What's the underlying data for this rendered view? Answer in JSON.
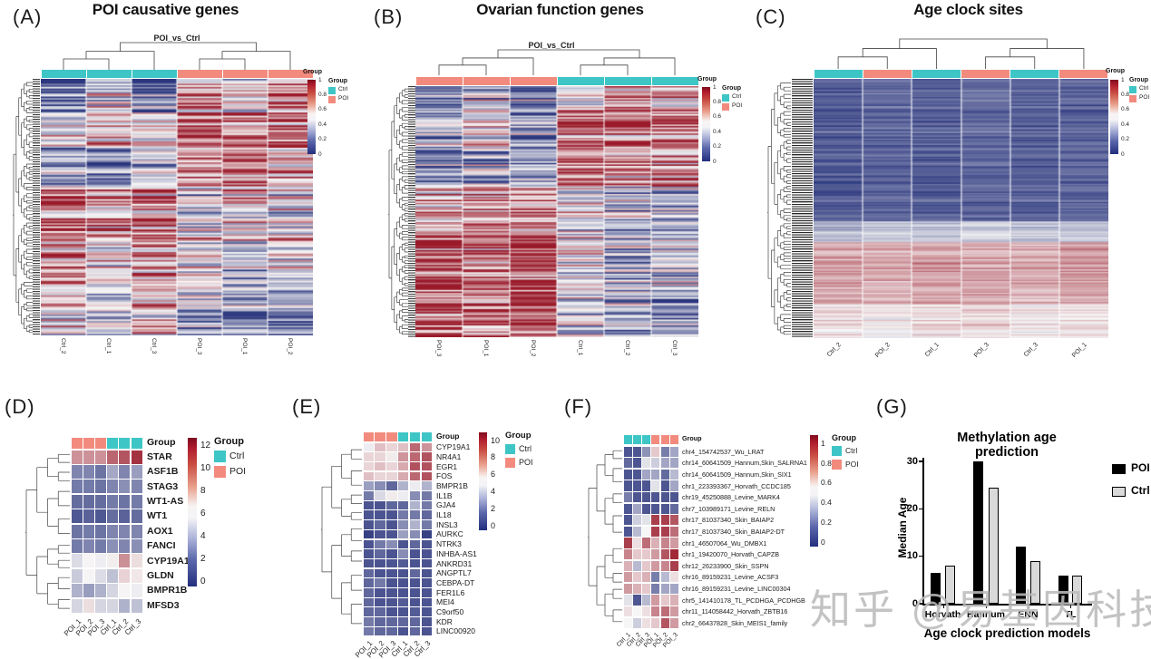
{
  "figure": {
    "watermark": "知乎 @易基因科技"
  },
  "colors": {
    "ctrl": "#3EC6C6",
    "poi": "#F28B7D",
    "heat_low": "#222E78",
    "heat_mid": "#F7F6F6",
    "heat_high": "#961122",
    "bar_poi": "#000000",
    "bar_ctrl": "#D9D9D9"
  },
  "chart_data": {
    "A": {
      "type": "heatmap",
      "panel_tag": "(A)",
      "title": "POI causative genes",
      "cluster_title": "POI_vs_Ctrl",
      "columns": [
        "Ctrl_2",
        "Ctrl_1",
        "Ctrl_3",
        "POI_3",
        "POI_1",
        "POI_2"
      ],
      "col_groups": [
        "Ctrl",
        "Ctrl",
        "Ctrl",
        "POI",
        "POI",
        "POI"
      ],
      "n_rows": 160,
      "seed": 7,
      "noise": 0.45,
      "value_ticks": [
        "1",
        "0.8",
        "0.6",
        "0.4",
        "0.2",
        "0"
      ],
      "colorbar_title": "Group",
      "legend_title": "Group",
      "legend_items": [
        "Ctrl",
        "POI"
      ],
      "blocks": [
        {
          "rows_frac": 0.13,
          "col_means": [
            0.15,
            0.5,
            0.2,
            0.72,
            0.5,
            0.78
          ]
        },
        {
          "rows_frac": 0.13,
          "col_means": [
            0.45,
            0.62,
            0.5,
            0.8,
            0.78,
            0.8
          ]
        },
        {
          "rows_frac": 0.16,
          "col_means": [
            0.35,
            0.3,
            0.45,
            0.75,
            0.8,
            0.7
          ]
        },
        {
          "rows_frac": 0.2,
          "col_means": [
            0.8,
            0.68,
            0.75,
            0.45,
            0.55,
            0.5
          ]
        },
        {
          "rows_frac": 0.13,
          "col_means": [
            0.75,
            0.55,
            0.72,
            0.6,
            0.45,
            0.55
          ]
        },
        {
          "rows_frac": 0.13,
          "col_means": [
            0.6,
            0.5,
            0.65,
            0.5,
            0.32,
            0.4
          ]
        },
        {
          "rows_frac": 0.12,
          "col_means": [
            0.55,
            0.5,
            0.6,
            0.3,
            0.28,
            0.22
          ]
        }
      ]
    },
    "B": {
      "type": "heatmap",
      "panel_tag": "(B)",
      "title": "Ovarian function genes",
      "cluster_title": "POI_vs_Ctrl",
      "columns": [
        "POI_3",
        "POI_1",
        "POI_2",
        "Ctrl_1",
        "Ctrl_2",
        "Ctrl_3"
      ],
      "col_groups": [
        "POI",
        "POI",
        "POI",
        "Ctrl",
        "Ctrl",
        "Ctrl"
      ],
      "n_rows": 170,
      "seed": 21,
      "noise": 0.45,
      "value_ticks": [
        "1",
        "0.8",
        "0.6",
        "0.4",
        "0.2",
        "0"
      ],
      "colorbar_title": "Group",
      "legend_title": "Group",
      "legend_items": [
        "Ctrl",
        "POI"
      ],
      "blocks": [
        {
          "rows_frac": 0.1,
          "col_means": [
            0.25,
            0.42,
            0.28,
            0.55,
            0.78,
            0.7
          ]
        },
        {
          "rows_frac": 0.15,
          "col_means": [
            0.38,
            0.55,
            0.32,
            0.8,
            0.82,
            0.78
          ]
        },
        {
          "rows_frac": 0.15,
          "col_means": [
            0.28,
            0.32,
            0.38,
            0.75,
            0.7,
            0.72
          ]
        },
        {
          "rows_frac": 0.15,
          "col_means": [
            0.7,
            0.78,
            0.72,
            0.52,
            0.38,
            0.35
          ]
        },
        {
          "rows_frac": 0.2,
          "col_means": [
            0.8,
            0.72,
            0.8,
            0.5,
            0.32,
            0.38
          ]
        },
        {
          "rows_frac": 0.25,
          "col_means": [
            0.85,
            0.78,
            0.82,
            0.42,
            0.32,
            0.28
          ]
        }
      ]
    },
    "C": {
      "type": "heatmap",
      "panel_tag": "(C)",
      "title": "Age clock sites",
      "columns": [
        "Ctrl_2",
        "POI_2",
        "Ctrl_1",
        "POI_3",
        "Ctrl_3",
        "POI_1"
      ],
      "col_groups": [
        "Ctrl",
        "POI",
        "Ctrl",
        "POI",
        "Ctrl",
        "POI"
      ],
      "n_rows": 200,
      "seed": 33,
      "noise": 0.11,
      "value_ticks": [
        "1",
        "0.8",
        "0.6",
        "0.4",
        "0.2",
        "0"
      ],
      "colorbar_title": "Group",
      "legend_title": "Group",
      "legend_items": [
        "Ctrl",
        "POI"
      ],
      "blocks": [
        {
          "rows_frac": 0.28,
          "col_means": [
            0.13,
            0.16,
            0.14,
            0.17,
            0.14,
            0.15
          ]
        },
        {
          "rows_frac": 0.27,
          "col_means": [
            0.12,
            0.14,
            0.12,
            0.15,
            0.13,
            0.14
          ]
        },
        {
          "rows_frac": 0.08,
          "col_means": [
            0.38,
            0.42,
            0.4,
            0.44,
            0.4,
            0.42
          ]
        },
        {
          "rows_frac": 0.24,
          "col_means": [
            0.72,
            0.7,
            0.73,
            0.71,
            0.69,
            0.72
          ]
        },
        {
          "rows_frac": 0.13,
          "col_means": [
            0.6,
            0.57,
            0.6,
            0.62,
            0.57,
            0.6
          ]
        }
      ]
    },
    "D": {
      "type": "heatmap",
      "panel_tag": "(D)",
      "annotation_label": "Group",
      "columns": [
        "POI_1",
        "POI_2",
        "POI_3",
        "Ctrl_1",
        "Ctrl_2",
        "Ctrl_3"
      ],
      "col_groups": [
        "POI",
        "POI",
        "POI",
        "Ctrl",
        "Ctrl",
        "Ctrl"
      ],
      "rows": [
        "STAR",
        "ASF1B",
        "STAG3",
        "WT1-AS",
        "WT1",
        "AOX1",
        "FANCI",
        "CYP19A1",
        "GLDN",
        "BMPR1B",
        "MFSD3"
      ],
      "values": [
        [
          8.7,
          8.7,
          8.7,
          10,
          10.5,
          11.5
        ],
        [
          2.5,
          2.5,
          2,
          3.5,
          2.5,
          3.2
        ],
        [
          2.2,
          2.2,
          2,
          2.5,
          2.8,
          2.5
        ],
        [
          1.8,
          1.8,
          1.8,
          2.2,
          2,
          2.2
        ],
        [
          1.2,
          1.5,
          1.2,
          1.8,
          1.5,
          1.8
        ],
        [
          2,
          2.2,
          2,
          2.5,
          2.5,
          2.5
        ],
        [
          2.2,
          2.5,
          2.2,
          2.8,
          2.5,
          2.8
        ],
        [
          5,
          5.8,
          5.5,
          6,
          8.8,
          6.5
        ],
        [
          4.5,
          5.8,
          5,
          4.2,
          6.8,
          6.2
        ],
        [
          3.8,
          3.2,
          3.8,
          4.8,
          5.8,
          5.5
        ],
        [
          4.8,
          6.5,
          4.8,
          4.8,
          3.8,
          4.2
        ]
      ],
      "vmax": 12.5,
      "value_ticks": [
        "12",
        "10",
        "8",
        "6",
        "4",
        "2",
        "0"
      ],
      "legend_title": "Group",
      "legend_items": [
        "Ctrl",
        "POI"
      ]
    },
    "E": {
      "type": "heatmap",
      "panel_tag": "(E)",
      "annotation_label": "Group",
      "columns": [
        "POI_1",
        "POI_2",
        "POI_3",
        "Ctrl_1",
        "Ctrl_2",
        "Ctrl_3"
      ],
      "col_groups": [
        "POI",
        "POI",
        "POI",
        "Ctrl",
        "Ctrl",
        "Ctrl"
      ],
      "rows": [
        "CYP19A1",
        "NR4A1",
        "EGR1",
        "FOS",
        "BMPR1B",
        "IL1B",
        "GJA4",
        "IL18",
        "INSL3",
        "AURKC",
        "NTRK3",
        "INHBA-AS1",
        "ANKRD31",
        "ANGPTL7",
        "CEBPA-DT",
        "FER1L6",
        "MEI4",
        "C9orf50",
        "KDR",
        "LINC00920"
      ],
      "values": [
        [
          5,
          6.5,
          6,
          6.5,
          8.5,
          7.5
        ],
        [
          6,
          6,
          5.5,
          7.5,
          8.5,
          9
        ],
        [
          6,
          6.5,
          6,
          7,
          9,
          9
        ],
        [
          6.5,
          6,
          6,
          7,
          8.5,
          9
        ],
        [
          3,
          2.5,
          1.5,
          3.5,
          5,
          3.5
        ],
        [
          2,
          4.5,
          5.5,
          5,
          2.5,
          2
        ],
        [
          1,
          1,
          1.5,
          1.5,
          3.5,
          2
        ],
        [
          1,
          1,
          1,
          2,
          2,
          1.5
        ],
        [
          1,
          1.5,
          1,
          2.5,
          3.5,
          2
        ],
        [
          0.5,
          1,
          1,
          3,
          2.5,
          0.5
        ],
        [
          1,
          2,
          2.5,
          1,
          1.5,
          1
        ],
        [
          1,
          1.5,
          1,
          2.5,
          1,
          1
        ],
        [
          1,
          1,
          1,
          1.2,
          1,
          1
        ],
        [
          1.5,
          1,
          1,
          1,
          1.5,
          1
        ],
        [
          1.5,
          2,
          1,
          1,
          1,
          1
        ],
        [
          1.5,
          1,
          1,
          1,
          1,
          1
        ],
        [
          1.5,
          1,
          1,
          1.2,
          1,
          1
        ],
        [
          1.5,
          1.5,
          1,
          1,
          1.2,
          1
        ],
        [
          2,
          1.5,
          1.5,
          1.5,
          1.5,
          1
        ],
        [
          2,
          1.5,
          1.5,
          1,
          1.5,
          1
        ]
      ],
      "vmax": 10.5,
      "value_ticks": [
        "10",
        "8",
        "6",
        "4",
        "2",
        "0"
      ],
      "legend_title": "Group",
      "legend_items": [
        "Ctrl",
        "POI"
      ]
    },
    "F": {
      "type": "heatmap",
      "panel_tag": "(F)",
      "annotation_label": "Group",
      "columns": [
        "Ctrl_1",
        "Ctrl_2",
        "Ctrl_3",
        "POI_1",
        "POI_2",
        "POI_3"
      ],
      "col_groups": [
        "Ctrl",
        "Ctrl",
        "Ctrl",
        "POI",
        "POI",
        "POI"
      ],
      "rows": [
        "chr4_154742537_Wu_LRAT",
        "chr14_60641509_Hannum,Skin_SALRNA1",
        "chr14_60641509_Hannum,Skin_SIX1",
        "chr1_223393367_Horvath_CCDC185",
        "chr19_45250888_Levine_MARK4",
        "chr7_103989171_Levine_RELN",
        "chr17_81037340_Skin_BAIAP2",
        "chr17_81037340_Skin_BAIAP2-DT",
        "chr1_46507064_Wu_DMBX1",
        "chr1_19420070_Horvath_CAPZB",
        "chr12_26233900_Skin_SSPN",
        "chr16_89159231_Levine_ACSF3",
        "chr16_89159231_Levine_LINC00304",
        "chr5_141410178_TL_PCDHGA_PCDHGB",
        "chr11_114058442_Horvath_ZBTB16",
        "chr2_66437828_Skin_MEIS1_family"
      ],
      "values": [
        [
          0.1,
          0.1,
          0.25,
          0.6,
          0.2,
          0.3
        ],
        [
          0.15,
          0.1,
          0.45,
          0.4,
          0.3,
          0.3
        ],
        [
          0.1,
          0.1,
          0.3,
          0.3,
          0.15,
          0.35
        ],
        [
          0.1,
          0.1,
          0.1,
          0.45,
          0.1,
          0.3
        ],
        [
          0.2,
          0.1,
          0.1,
          0.1,
          0.1,
          0.1
        ],
        [
          0.1,
          0.3,
          0.1,
          0.1,
          0.1,
          0.15
        ],
        [
          0.1,
          0.4,
          0.45,
          0.9,
          0.9,
          0.85
        ],
        [
          0.1,
          0.35,
          0.5,
          0.9,
          0.9,
          0.8
        ],
        [
          0.9,
          0.55,
          0.8,
          0.65,
          0.75,
          0.7
        ],
        [
          0.75,
          0.6,
          0.6,
          0.7,
          0.85,
          0.95
        ],
        [
          0.65,
          0.35,
          0.6,
          0.7,
          0.75,
          0.9
        ],
        [
          0.7,
          0.6,
          0.65,
          0.2,
          0.35,
          0.55
        ],
        [
          0.7,
          0.65,
          0.6,
          0.2,
          0.3,
          0.3
        ],
        [
          0.45,
          0.1,
          0.35,
          0.7,
          0.6,
          0.65
        ],
        [
          0.55,
          0.5,
          0.55,
          0.75,
          0.8,
          0.7
        ],
        [
          0.5,
          0.4,
          0.55,
          0.6,
          0.85,
          0.7
        ]
      ],
      "vmax": 1,
      "value_ticks": [
        "1",
        "0.8",
        "0.6",
        "0.4",
        "0.2",
        "0"
      ],
      "legend_title": "Group",
      "legend_items": [
        "Ctrl",
        "POI"
      ]
    },
    "G": {
      "type": "bar",
      "panel_tag": "(G)",
      "title": "Methylation age prediction",
      "xlabel": "Age clock prediction models",
      "ylabel": "Median Age",
      "categories": [
        "Horvath",
        "Hannum",
        "ENN",
        "TL"
      ],
      "series": [
        {
          "name": "POI",
          "values": [
            6.5,
            30,
            12,
            6
          ]
        },
        {
          "name": "Ctrl",
          "values": [
            8,
            24.5,
            9,
            6
          ]
        }
      ],
      "yticks": [
        0,
        10,
        20,
        30
      ],
      "ylim": [
        0,
        30
      ],
      "legend": [
        "POI",
        "Ctrl"
      ]
    }
  }
}
